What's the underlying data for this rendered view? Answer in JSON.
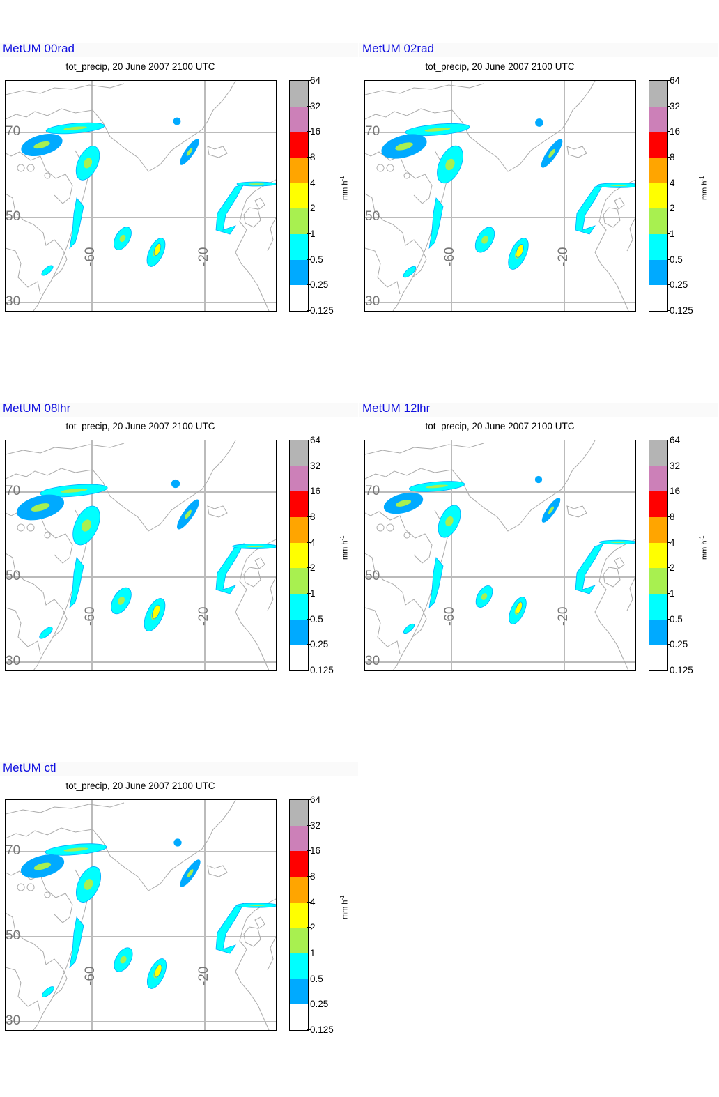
{
  "plot_title": "tot_precip, 20 June 2007 2100 UTC",
  "unit": "mm h",
  "unit_exponent": "-1",
  "lat_labels": [
    "70",
    "50",
    "30"
  ],
  "lon_labels": [
    "-60",
    "-20"
  ],
  "colorbar": {
    "levels": [
      "64",
      "32",
      "16",
      "8",
      "4",
      "2",
      "1",
      "0.5",
      "0.25",
      "0.125"
    ],
    "colors": [
      "#b4b4b4",
      "#cc80b8",
      "#ff0000",
      "#ffa500",
      "#ffff00",
      "#a8f050",
      "#00ffff",
      "#00aaff",
      "#ffffff"
    ]
  },
  "panels": [
    {
      "id": "00rad",
      "model": "MetUM 00rad"
    },
    {
      "id": "02rad",
      "model": "MetUM 02rad"
    },
    {
      "id": "08lhr",
      "model": "MetUM 08lhr"
    },
    {
      "id": "12lhr",
      "model": "MetUM 12lhr"
    },
    {
      "id": "ctl",
      "model": "MetUM ctl"
    }
  ],
  "map_colors": {
    "coast": "#aaaaaa",
    "grid": "#bbbbbb",
    "light": "#00ffff",
    "medium": "#00aaff",
    "heavy": "#ffff00",
    "strong": "#a8f050"
  }
}
